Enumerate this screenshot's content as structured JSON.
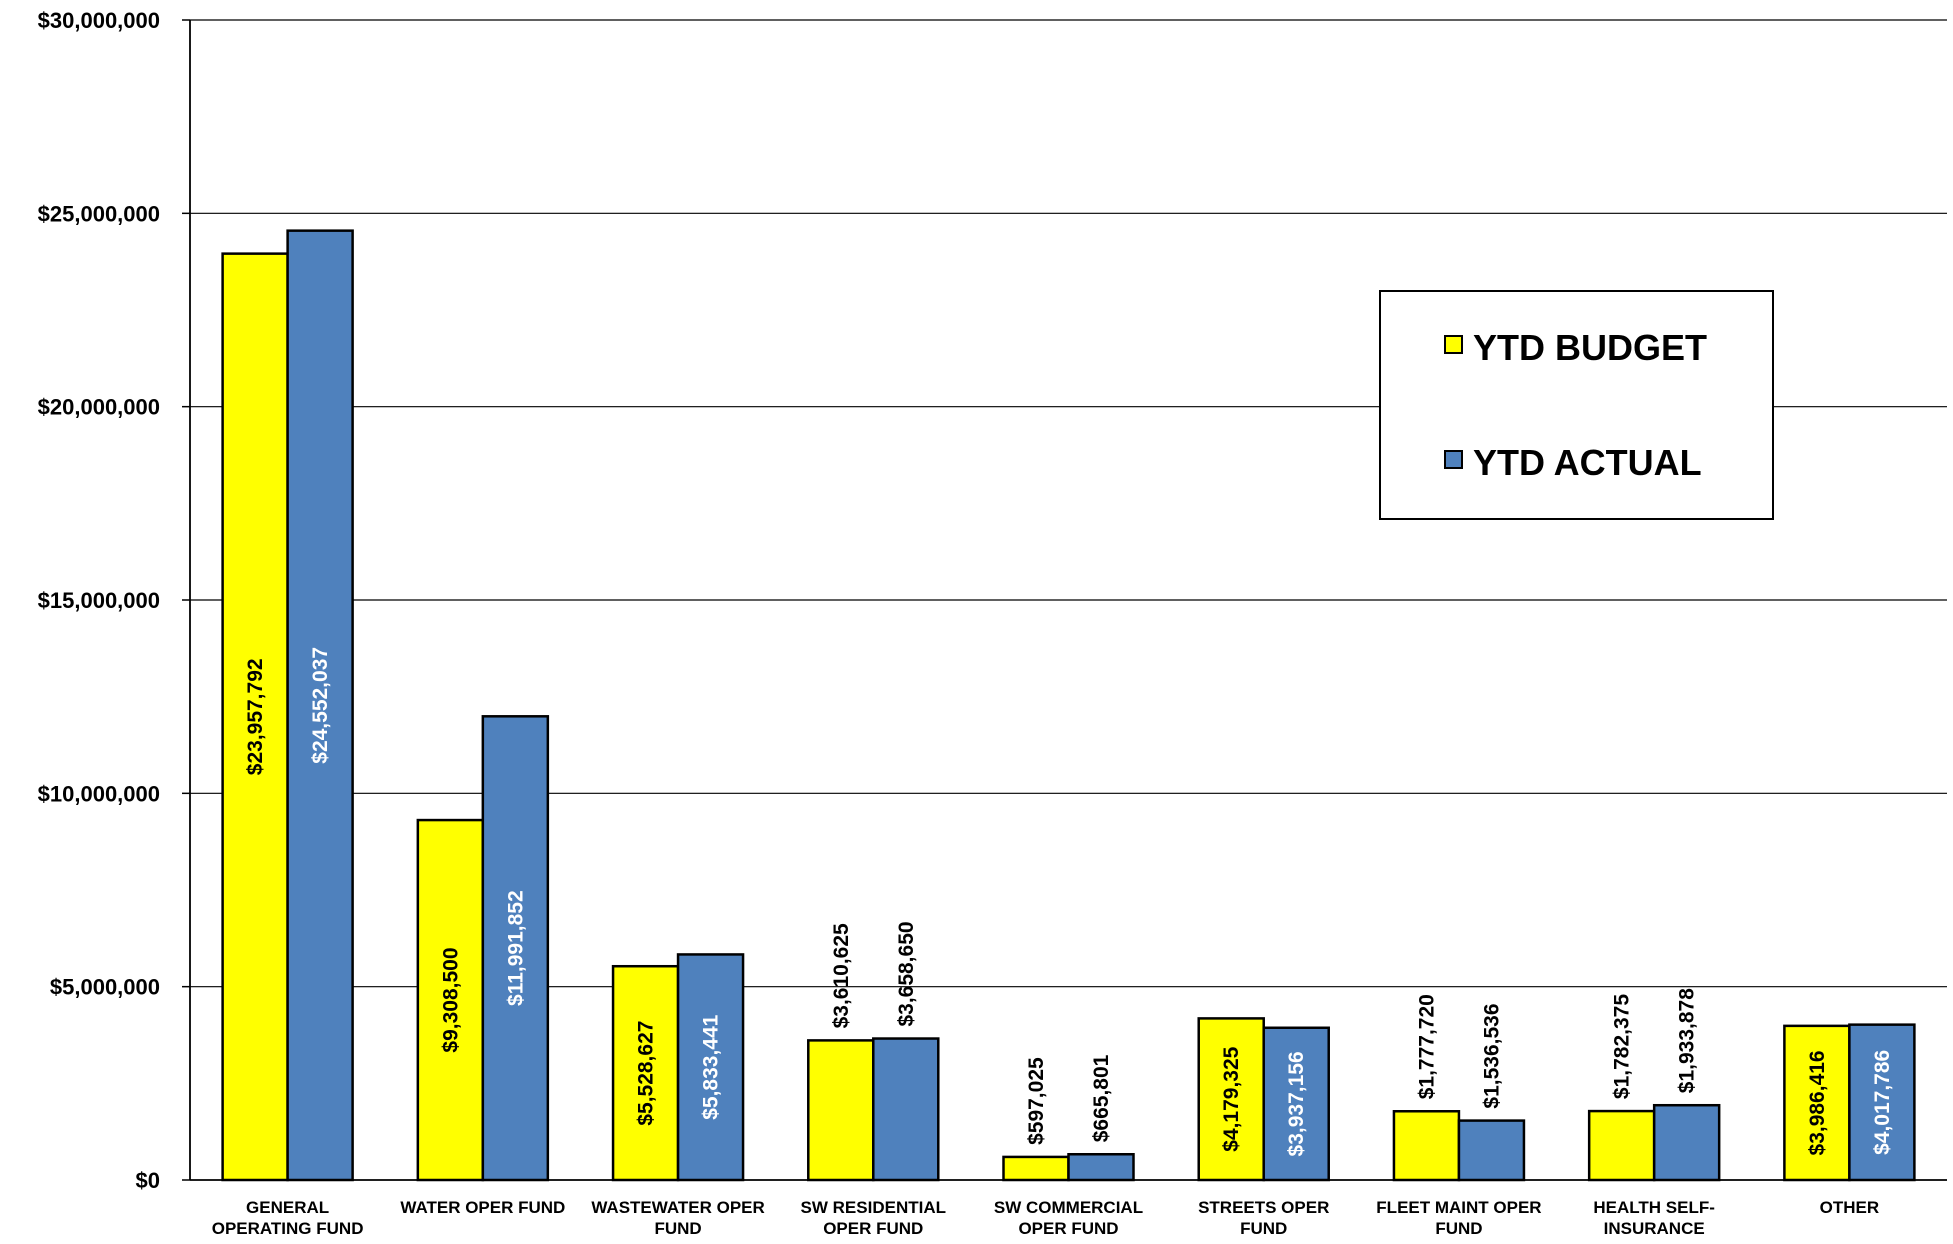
{
  "chart_data": {
    "type": "bar",
    "title": "",
    "xlabel": "",
    "ylabel": "",
    "ylim": [
      0,
      30000000
    ],
    "yticks": [
      0,
      5000000,
      10000000,
      15000000,
      20000000,
      25000000,
      30000000
    ],
    "ytick_labels": [
      "$0",
      "$5,000,000",
      "$10,000,000",
      "$15,000,000",
      "$20,000,000",
      "$25,000,000",
      "$30,000,000"
    ],
    "grid": true,
    "legend_position": "top-right",
    "categories": [
      [
        "GENERAL",
        "OPERATING FUND"
      ],
      [
        "WATER OPER FUND"
      ],
      [
        "WASTEWATER OPER",
        "FUND"
      ],
      [
        "SW RESIDENTIAL",
        "OPER FUND"
      ],
      [
        "SW COMMERCIAL",
        "OPER FUND"
      ],
      [
        "STREETS OPER",
        "FUND"
      ],
      [
        "FLEET MAINT OPER",
        "FUND"
      ],
      [
        "HEALTH SELF-",
        "INSURANCE"
      ],
      [
        "OTHER"
      ]
    ],
    "series": [
      {
        "name": "YTD BUDGET",
        "color": "#ffff00",
        "label_color": "#000000",
        "values": [
          23957792,
          9308500,
          5528627,
          3610625,
          597025,
          4179325,
          1777720,
          1782375,
          3986416
        ],
        "labels": [
          "$23,957,792",
          "$9,308,500",
          "$5,528,627",
          "$3,610,625",
          "$597,025",
          "$4,179,325",
          "$1,777,720",
          "$1,782,375",
          "$3,986,416"
        ],
        "label_placement": [
          "inside",
          "inside",
          "inside",
          "above",
          "above",
          "inside",
          "above",
          "above",
          "inside"
        ]
      },
      {
        "name": "YTD ACTUAL",
        "color": "#4f81bd",
        "label_color": "#ffffff",
        "values": [
          24552037,
          11991852,
          5833441,
          3658650,
          665801,
          3937156,
          1536536,
          1933878,
          4017786
        ],
        "labels": [
          "$24,552,037",
          "$11,991,852",
          "$5,833,441",
          "$3,658,650",
          "$665,801",
          "$3,937,156",
          "$1,536,536",
          "$1,933,878",
          "$4,017,786"
        ],
        "label_placement": [
          "inside",
          "inside",
          "inside",
          "above",
          "above",
          "inside",
          "above",
          "above",
          "inside"
        ]
      }
    ]
  }
}
